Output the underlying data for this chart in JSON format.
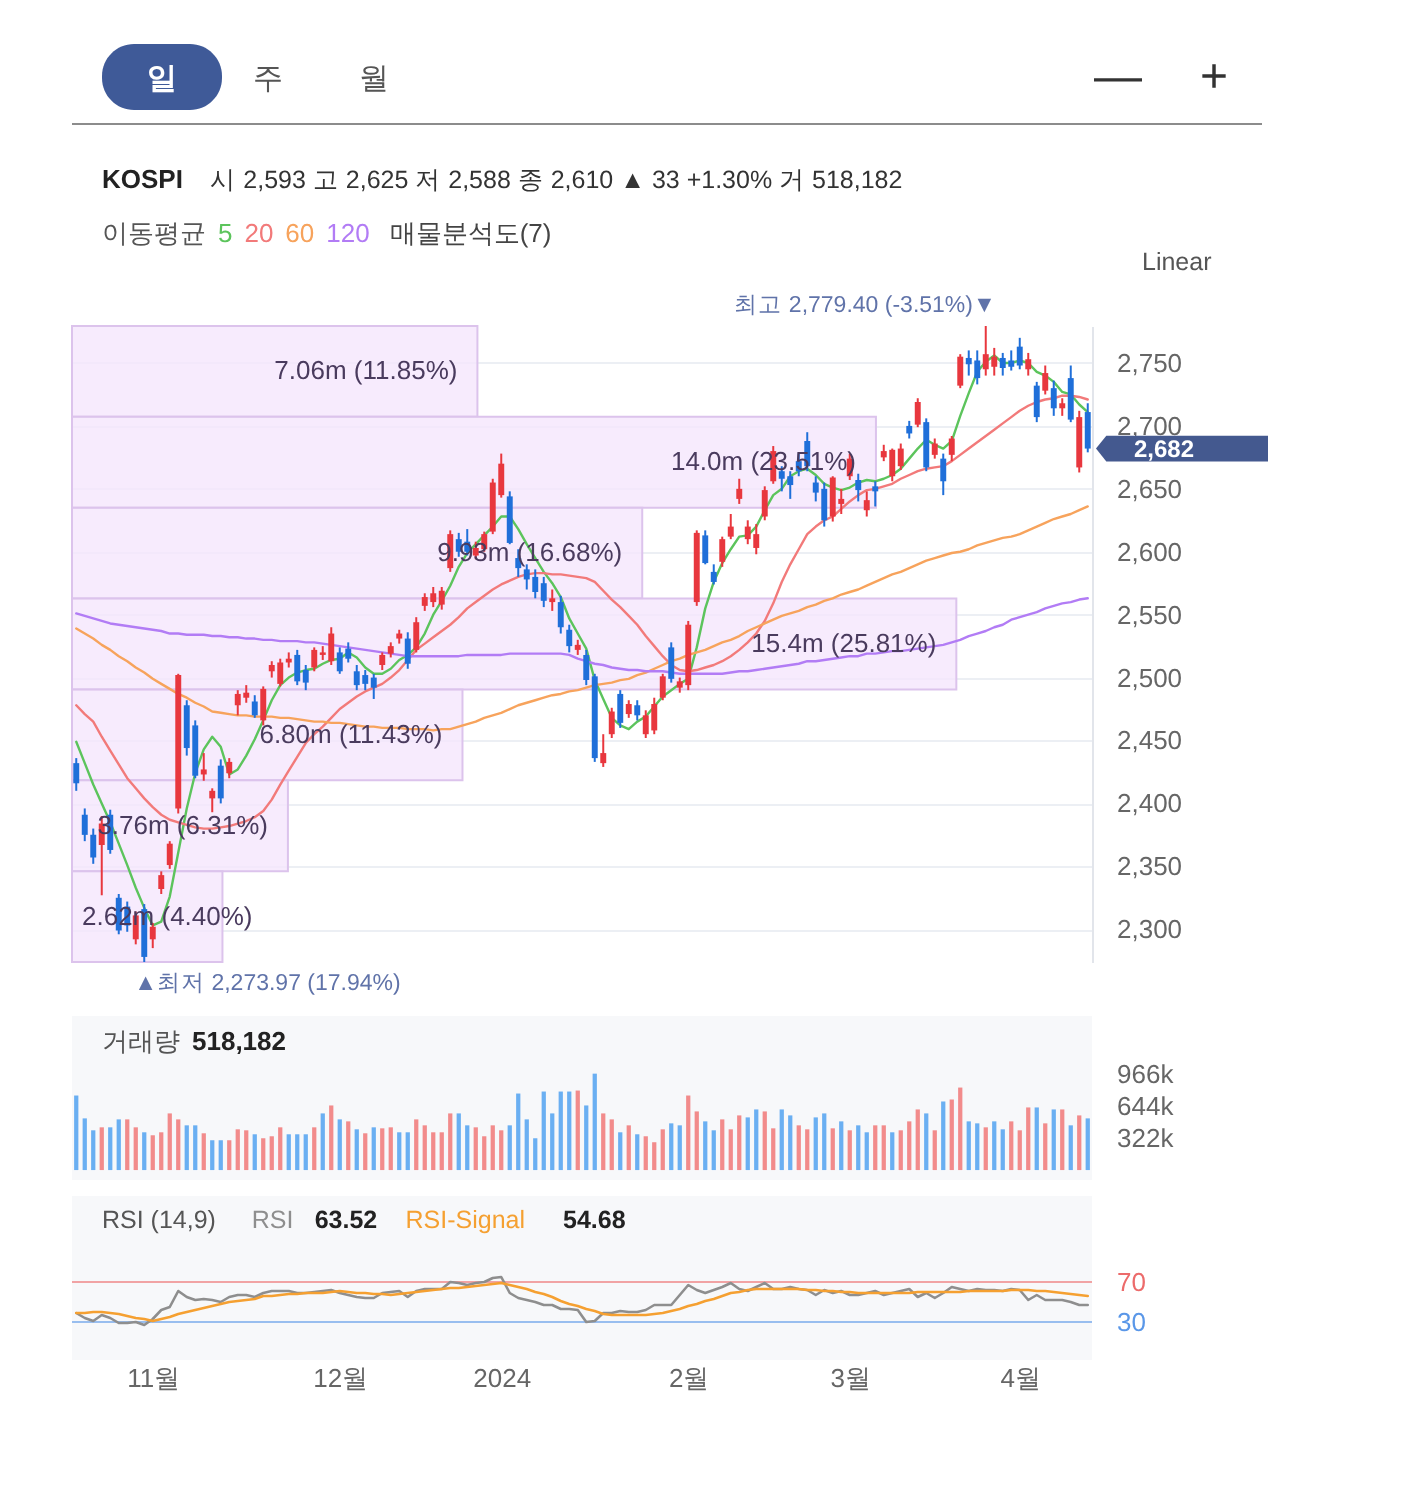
{
  "chart_data": [
    {
      "type": "other",
      "annotations": [
        "일",
        "주",
        "월",
        "—",
        "+"
      ]
    },
    {
      "type": "candlestick",
      "title": "KOSPI",
      "subtitle": "시 2,593 고 2,625 저 2,588 종 2,610 ▲ 33 +1.30% 거 518,182",
      "legend_title": "이동평균",
      "legend": "top left",
      "grid": "y",
      "categories": [
        null,
        null,
        null,
        null,
        null,
        null,
        null,
        null,
        null,
        null,
        null,
        null,
        null,
        null,
        null,
        null,
        null,
        null,
        null,
        null,
        null,
        null,
        null,
        null,
        null,
        null,
        null,
        null,
        null,
        null,
        null,
        null,
        null,
        null,
        null,
        null,
        null,
        null,
        null,
        null,
        null,
        null,
        null,
        null,
        null,
        null,
        null,
        null,
        null,
        null,
        null,
        null,
        null,
        null,
        null,
        null,
        null,
        null,
        null,
        null,
        null,
        null,
        null,
        null,
        null,
        null,
        null,
        null,
        null,
        null,
        null,
        null,
        null,
        null,
        null,
        null,
        null,
        null,
        null,
        null,
        null,
        null,
        null,
        null,
        null,
        null,
        null,
        null,
        null,
        null,
        null,
        null,
        null,
        null,
        null,
        null,
        null,
        null,
        null,
        null,
        null,
        null,
        null,
        null,
        null,
        null,
        null,
        null,
        null,
        null,
        null,
        null,
        null,
        null,
        null,
        null,
        null,
        null,
        null,
        null
      ],
      "ohlc": [
        [
          2432,
          2436,
          2410,
          2416
        ],
        [
          2391,
          2396,
          2370,
          2375
        ],
        [
          2375,
          2380,
          2352,
          2357
        ],
        [
          2367,
          2390,
          2327,
          2384
        ],
        [
          2391,
          2395,
          2360,
          2363
        ],
        [
          2325,
          2328,
          2296,
          2299
        ],
        [
          2318,
          2322,
          2298,
          2303
        ],
        [
          2292,
          2314,
          2288,
          2311
        ],
        [
          2316,
          2320,
          2273.97,
          2278
        ],
        [
          2292,
          2305,
          2285,
          2302
        ],
        [
          2332,
          2346,
          2328,
          2343
        ],
        [
          2351,
          2370,
          2348,
          2368
        ],
        [
          2396,
          2503,
          2392,
          2502
        ],
        [
          2478,
          2482,
          2438,
          2444
        ],
        [
          2462,
          2466,
          2420,
          2422
        ],
        [
          2423,
          2440,
          2418,
          2427
        ],
        [
          2404,
          2412,
          2393,
          2410
        ],
        [
          2430,
          2435,
          2400,
          2404
        ],
        [
          2424,
          2436,
          2420,
          2433
        ],
        [
          2478,
          2490,
          2470,
          2487
        ],
        [
          2484,
          2494,
          2480,
          2488
        ],
        [
          2481,
          2486,
          2468,
          2470
        ],
        [
          2466,
          2493,
          2462,
          2491
        ],
        [
          2505,
          2513,
          2500,
          2510
        ],
        [
          2495,
          2515,
          2493,
          2512
        ],
        [
          2512,
          2520,
          2508,
          2515
        ],
        [
          2518,
          2522,
          2494,
          2497
        ],
        [
          2506,
          2510,
          2490,
          2496
        ],
        [
          2508,
          2524,
          2505,
          2522
        ],
        [
          2518,
          2525,
          2514,
          2520
        ],
        [
          2513,
          2540,
          2510,
          2535
        ],
        [
          2520,
          2524,
          2503,
          2505
        ],
        [
          2523,
          2528,
          2512,
          2515
        ],
        [
          2505,
          2510,
          2490,
          2494
        ],
        [
          2502,
          2506,
          2490,
          2495
        ],
        [
          2500,
          2503,
          2483,
          2492
        ],
        [
          2510,
          2520,
          2506,
          2518
        ],
        [
          2519,
          2528,
          2516,
          2525
        ],
        [
          2531,
          2538,
          2527,
          2535
        ],
        [
          2531,
          2536,
          2507,
          2511
        ],
        [
          2522,
          2548,
          2520,
          2544
        ],
        [
          2557,
          2567,
          2553,
          2564
        ],
        [
          2560,
          2572,
          2556,
          2567
        ],
        [
          2558,
          2572,
          2554,
          2569
        ],
        [
          2587,
          2617,
          2584,
          2614
        ],
        [
          2610,
          2615,
          2596,
          2600
        ],
        [
          2608,
          2618,
          2597,
          2600
        ],
        [
          2597,
          2608,
          2594,
          2603
        ],
        [
          2602,
          2616,
          2600,
          2614
        ],
        [
          2616,
          2658,
          2614,
          2655
        ],
        [
          2645,
          2678,
          2643,
          2670
        ],
        [
          2644,
          2648,
          2606,
          2607
        ],
        [
          2595,
          2602,
          2580,
          2587
        ],
        [
          2586,
          2590,
          2570,
          2578
        ],
        [
          2580,
          2586,
          2563,
          2568
        ],
        [
          2575,
          2580,
          2556,
          2561
        ],
        [
          2560,
          2570,
          2553,
          2563
        ],
        [
          2560,
          2565,
          2535,
          2540
        ],
        [
          2538,
          2542,
          2520,
          2525
        ],
        [
          2522,
          2530,
          2518,
          2526
        ],
        [
          2518,
          2522,
          2494,
          2498
        ],
        [
          2501,
          2503,
          2433,
          2436
        ],
        [
          2432,
          2455,
          2429,
          2440
        ],
        [
          2455,
          2476,
          2452,
          2473
        ],
        [
          2487,
          2490,
          2460,
          2464
        ],
        [
          2471,
          2482,
          2468,
          2479
        ],
        [
          2478,
          2482,
          2466,
          2470
        ],
        [
          2455,
          2474,
          2452,
          2470
        ],
        [
          2458,
          2484,
          2455,
          2479
        ],
        [
          2484,
          2503,
          2482,
          2501
        ],
        [
          2524,
          2528,
          2496,
          2499
        ],
        [
          2492,
          2500,
          2488,
          2497
        ],
        [
          2494,
          2545,
          2490,
          2542
        ],
        [
          2560,
          2617,
          2557,
          2615
        ],
        [
          2613,
          2617,
          2590,
          2591
        ],
        [
          2584,
          2590,
          2574,
          2576
        ],
        [
          2592,
          2612,
          2588,
          2610
        ],
        [
          2612,
          2630,
          2610,
          2620
        ],
        [
          2642,
          2658,
          2638,
          2650
        ],
        [
          2610,
          2625,
          2606,
          2620
        ],
        [
          2603,
          2622,
          2598,
          2614
        ],
        [
          2628,
          2652,
          2625,
          2649
        ],
        [
          2656,
          2684,
          2654,
          2680
        ],
        [
          2664,
          2668,
          2648,
          2658
        ],
        [
          2660,
          2664,
          2642,
          2653
        ],
        [
          2672,
          2678,
          2660,
          2664
        ],
        [
          2688,
          2695,
          2664,
          2668
        ],
        [
          2655,
          2660,
          2640,
          2647
        ],
        [
          2650,
          2655,
          2620,
          2625
        ],
        [
          2628,
          2660,
          2624,
          2659
        ],
        [
          2638,
          2650,
          2630,
          2642
        ],
        [
          2660,
          2678,
          2657,
          2674
        ],
        [
          2657,
          2662,
          2640,
          2649
        ],
        [
          2633,
          2648,
          2628,
          2641
        ],
        [
          2652,
          2656,
          2636,
          2648
        ],
        [
          2675,
          2685,
          2672,
          2680
        ],
        [
          2660,
          2682,
          2656,
          2681
        ],
        [
          2668,
          2686,
          2665,
          2682
        ],
        [
          2700,
          2704,
          2690,
          2694
        ],
        [
          2701,
          2722,
          2699,
          2719
        ],
        [
          2703,
          2706,
          2664,
          2667
        ],
        [
          2677,
          2690,
          2674,
          2686
        ],
        [
          2674,
          2678,
          2645,
          2656
        ],
        [
          2677,
          2692,
          2672,
          2690
        ],
        [
          2732,
          2757,
          2730,
          2755
        ],
        [
          2754,
          2760,
          2740,
          2749
        ],
        [
          2752,
          2760,
          2733,
          2738
        ],
        [
          2745,
          2779.4,
          2740,
          2757
        ],
        [
          2747,
          2762,
          2740,
          2755
        ],
        [
          2754,
          2758,
          2740,
          2746
        ],
        [
          2752,
          2760,
          2744,
          2747
        ],
        [
          2763,
          2770,
          2745,
          2748
        ],
        [
          2745,
          2758,
          2740,
          2753
        ],
        [
          2732,
          2735,
          2703,
          2707
        ],
        [
          2728,
          2748,
          2725,
          2742
        ],
        [
          2730,
          2736,
          2708,
          2714
        ],
        [
          2714,
          2722,
          2708,
          2718
        ],
        [
          2738,
          2748,
          2703,
          2705
        ],
        [
          2667,
          2712,
          2663,
          2707
        ],
        [
          2711,
          2718,
          2679,
          2682
        ]
      ],
      "colors": [
        "#1f6fd9",
        "#1f6fd9",
        "#1f6fd9",
        "#e8373e",
        "#1f6fd9",
        "#1f6fd9",
        "#1f6fd9",
        "#e8373e",
        "#1f6fd9",
        "#e8373e",
        "#e8373e",
        "#e8373e",
        "#e8373e",
        "#1f6fd9",
        "#1f6fd9",
        "#e8373e",
        "#e8373e",
        "#1f6fd9",
        "#e8373e",
        "#e8373e",
        "#e8373e",
        "#1f6fd9",
        "#e8373e",
        "#e8373e",
        "#e8373e",
        "#e8373e",
        "#1f6fd9",
        "#1f6fd9",
        "#e8373e",
        "#e8373e",
        "#e8373e",
        "#1f6fd9",
        "#1f6fd9",
        "#1f6fd9",
        "#1f6fd9",
        "#1f6fd9",
        "#e8373e",
        "#e8373e",
        "#e8373e",
        "#1f6fd9",
        "#e8373e",
        "#e8373e",
        "#e8373e",
        "#e8373e",
        "#e8373e",
        "#1f6fd9",
        "#1f6fd9",
        "#e8373e",
        "#e8373e",
        "#e8373e",
        "#e8373e",
        "#1f6fd9",
        "#1f6fd9",
        "#1f6fd9",
        "#1f6fd9",
        "#1f6fd9",
        "#e8373e",
        "#1f6fd9",
        "#1f6fd9",
        "#e8373e",
        "#1f6fd9",
        "#1f6fd9",
        "#e8373e",
        "#e8373e",
        "#1f6fd9",
        "#e8373e",
        "#1f6fd9",
        "#e8373e",
        "#e8373e",
        "#e8373e",
        "#1f6fd9",
        "#e8373e",
        "#e8373e",
        "#e8373e",
        "#1f6fd9",
        "#1f6fd9",
        "#e8373e",
        "#e8373e",
        "#e8373e",
        "#e8373e",
        "#e8373e",
        "#e8373e",
        "#e8373e",
        "#1f6fd9",
        "#1f6fd9",
        "#1f6fd9",
        "#1f6fd9",
        "#1f6fd9",
        "#1f6fd9",
        "#e8373e",
        "#e8373e",
        "#e8373e",
        "#1f6fd9",
        "#e8373e",
        "#1f6fd9",
        "#e8373e",
        "#e8373e",
        "#e8373e",
        "#1f6fd9",
        "#e8373e",
        "#1f6fd9",
        "#e8373e",
        "#1f6fd9",
        "#e8373e",
        "#e8373e",
        "#1f6fd9",
        "#1f6fd9",
        "#e8373e",
        "#e8373e",
        "#1f6fd9",
        "#1f6fd9",
        "#1f6fd9",
        "#e8373e",
        "#1f6fd9",
        "#e8373e",
        "#1f6fd9",
        "#e8373e",
        "#1f6fd9",
        "#e8373e",
        "#1f6fd9"
      ],
      "series": [
        {
          "name": "5",
          "type": "line",
          "color": "#5cc45c",
          "values": [
            2449,
            2432,
            2415,
            2400,
            2385,
            2368,
            2351,
            2333,
            2317,
            2303,
            2306,
            2326,
            2361,
            2396,
            2424,
            2443,
            2453,
            2445,
            2423,
            2427,
            2438,
            2451,
            2466,
            2482,
            2494,
            2500,
            2504,
            2506,
            2507,
            2511,
            2514,
            2515,
            2520,
            2516,
            2508,
            2503,
            2503,
            2507,
            2514,
            2518,
            2524,
            2535,
            2550,
            2561,
            2573,
            2588,
            2599,
            2606,
            2613,
            2620,
            2628,
            2628,
            2618,
            2606,
            2595,
            2584,
            2575,
            2564,
            2547,
            2535,
            2523,
            2498,
            2483,
            2468,
            2462,
            2459,
            2465,
            2469,
            2477,
            2485,
            2490,
            2495,
            2499,
            2524,
            2555,
            2576,
            2591,
            2602,
            2612,
            2613,
            2620,
            2633,
            2645,
            2650,
            2660,
            2664,
            2666,
            2661,
            2654,
            2651,
            2649,
            2651,
            2655,
            2657,
            2656,
            2658,
            2661,
            2666,
            2674,
            2682,
            2689,
            2685,
            2682,
            2688,
            2708,
            2726,
            2743,
            2751,
            2756,
            2750,
            2750,
            2752,
            2750,
            2743,
            2740,
            2735,
            2727,
            2725,
            2717,
            2711
          ]
        },
        {
          "name": "20",
          "type": "line",
          "color": "#f27a7a",
          "values": [
            2478,
            2471,
            2465,
            2453,
            2442,
            2431,
            2420,
            2412,
            2404,
            2397,
            2391,
            2387,
            2385,
            2383,
            2381,
            2380,
            2380,
            2381,
            2382,
            2384,
            2386,
            2389,
            2394,
            2403,
            2415,
            2426,
            2437,
            2448,
            2455,
            2461,
            2468,
            2475,
            2480,
            2485,
            2489,
            2492,
            2495,
            2500,
            2506,
            2514,
            2522,
            2527,
            2532,
            2537,
            2542,
            2548,
            2555,
            2560,
            2565,
            2570,
            2574,
            2577,
            2580,
            2582,
            2583,
            2583,
            2582,
            2582,
            2581,
            2580,
            2579,
            2576,
            2569,
            2562,
            2556,
            2549,
            2542,
            2533,
            2525,
            2517,
            2510,
            2506,
            2505,
            2506,
            2508,
            2510,
            2513,
            2517,
            2522,
            2528,
            2535,
            2545,
            2559,
            2576,
            2590,
            2602,
            2614,
            2620,
            2625,
            2628,
            2634,
            2640,
            2645,
            2649,
            2650,
            2652,
            2654,
            2658,
            2661,
            2664,
            2666,
            2667,
            2668,
            2672,
            2677,
            2682,
            2687,
            2692,
            2697,
            2702,
            2707,
            2712,
            2716,
            2719,
            2721,
            2722,
            2724,
            2724,
            2723,
            2721
          ]
        },
        {
          "name": "60",
          "type": "line",
          "color": "#f7a35c",
          "values": [
            2539,
            2535,
            2531,
            2526,
            2522,
            2517,
            2513,
            2508,
            2504,
            2499,
            2495,
            2491,
            2487,
            2484,
            2480,
            2477,
            2473,
            2472,
            2471,
            2470,
            2470,
            2469,
            2469,
            2469,
            2468,
            2468,
            2467,
            2466,
            2465,
            2465,
            2464,
            2464,
            2463,
            2462,
            2461,
            2461,
            2460,
            2460,
            2460,
            2459,
            2459,
            2459,
            2458,
            2459,
            2459,
            2461,
            2463,
            2465,
            2468,
            2470,
            2472,
            2475,
            2478,
            2480,
            2482,
            2484,
            2486,
            2487,
            2489,
            2490,
            2492,
            2494,
            2495,
            2496,
            2498,
            2499,
            2502,
            2504,
            2507,
            2510,
            2513,
            2515,
            2518,
            2520,
            2522,
            2525,
            2528,
            2530,
            2533,
            2537,
            2540,
            2543,
            2546,
            2549,
            2551,
            2553,
            2556,
            2558,
            2561,
            2563,
            2566,
            2568,
            2570,
            2573,
            2576,
            2579,
            2582,
            2584,
            2587,
            2590,
            2593,
            2595,
            2597,
            2599,
            2600,
            2602,
            2605,
            2607,
            2609,
            2611,
            2612,
            2614,
            2617,
            2620,
            2623,
            2626,
            2628,
            2630,
            2633,
            2636
          ]
        },
        {
          "name": "120",
          "type": "line",
          "color": "#b27cf5",
          "values": [
            2551,
            2549,
            2547,
            2545,
            2543,
            2542,
            2541,
            2540,
            2539,
            2538,
            2537,
            2535,
            2535,
            2534,
            2534,
            2534,
            2533,
            2533,
            2532,
            2532,
            2531,
            2531,
            2530,
            2530,
            2529,
            2529,
            2529,
            2528,
            2528,
            2527,
            2526,
            2525,
            2524,
            2523,
            2522,
            2521,
            2520,
            2519,
            2518,
            2517,
            2517,
            2517,
            2517,
            2517,
            2517,
            2517,
            2518,
            2518,
            2518,
            2518,
            2518,
            2519,
            2519,
            2519,
            2519,
            2519,
            2519,
            2519,
            2518,
            2515,
            2513,
            2511,
            2510,
            2508,
            2507,
            2506,
            2506,
            2505,
            2505,
            2505,
            2504,
            2503,
            2503,
            2503,
            2503,
            2503,
            2503,
            2504,
            2505,
            2505,
            2506,
            2507,
            2508,
            2509,
            2510,
            2511,
            2513,
            2513,
            2514,
            2515,
            2516,
            2517,
            2517,
            2519,
            2519,
            2520,
            2521,
            2521,
            2522,
            2523,
            2524,
            2525,
            2526,
            2528,
            2530,
            2533,
            2535,
            2537,
            2540,
            2542,
            2546,
            2548,
            2550,
            2552,
            2555,
            2557,
            2559,
            2560,
            2562,
            2563
          ]
        }
      ],
      "ylim": [
        2273.97,
        2779.4
      ],
      "yticks": [
        {
          "value": 2300,
          "label": "2,300"
        },
        {
          "value": 2350,
          "label": "2,350"
        },
        {
          "value": 2400,
          "label": "2,400"
        },
        {
          "value": 2450,
          "label": "2,450"
        },
        {
          "value": 2500,
          "label": "2,500"
        },
        {
          "value": 2550,
          "label": "2,550"
        },
        {
          "value": 2600,
          "label": "2,600"
        },
        {
          "value": 2650,
          "label": "2,650"
        },
        {
          "value": 2700,
          "label": "2,700"
        },
        {
          "value": 2750,
          "label": "2,750"
        }
      ],
      "annotations": [
        "최고 2,779.40 (-3.51%)▼",
        "▲최저 2,273.97 (17.94%)",
        "2,682",
        "Linear"
      ]
    },
    {
      "type": "bar",
      "orientation": "horizontal",
      "title": "매물분석도(7)",
      "categories": [
        null,
        null,
        null,
        null,
        null,
        null,
        null
      ],
      "values": [
        7060000,
        14000000,
        9930000,
        15400000,
        6800000,
        3760000,
        2620000
      ],
      "value_labels": [
        "7.06m (11.85%)",
        "14.0m (23.51%)",
        "9.93m (16.68%)",
        "15.4m (25.81%)",
        "6.80m (11.43%)",
        "3.76m (6.31%)",
        "2.62m (4.40%)"
      ],
      "colors": [
        "#f5e6fc",
        "#f5e6fc",
        "#f5e6fc",
        "#f5e6fc",
        "#f5e6fc",
        "#f5e6fc",
        "#f5e6fc"
      ]
    },
    {
      "type": "bar",
      "title": "거래량",
      "annotations": [
        "518,182"
      ],
      "categories": [
        null,
        null,
        null,
        null,
        null,
        null,
        null,
        null,
        null,
        null,
        null,
        null,
        null,
        null,
        null,
        null,
        null,
        null,
        null,
        null,
        null,
        null,
        null,
        null,
        null,
        null,
        null,
        null,
        null,
        null,
        null,
        null,
        null,
        null,
        null,
        null,
        null,
        null,
        null,
        null,
        null,
        null,
        null,
        null,
        null,
        null,
        null,
        null,
        null,
        null,
        null,
        null,
        null,
        null,
        null,
        null,
        null,
        null,
        null,
        null,
        null,
        null,
        null,
        null,
        null,
        null,
        null,
        null,
        null,
        null,
        null,
        null,
        null,
        null,
        null,
        null,
        null,
        null,
        null,
        null,
        null,
        null,
        null,
        null,
        null,
        null,
        null,
        null,
        null,
        null,
        null,
        null,
        null,
        null,
        null,
        null,
        null,
        null,
        null,
        null,
        null,
        null,
        null,
        null,
        null,
        null,
        null,
        null,
        null,
        null,
        null,
        null,
        null,
        null,
        null,
        null,
        null,
        null,
        null,
        null
      ],
      "values": [
        750000,
        520000,
        400000,
        430000,
        430000,
        510000,
        510000,
        430000,
        380000,
        350000,
        380000,
        570000,
        510000,
        450000,
        450000,
        370000,
        300000,
        300000,
        300000,
        410000,
        400000,
        360000,
        320000,
        340000,
        430000,
        360000,
        360000,
        360000,
        430000,
        570000,
        650000,
        510000,
        490000,
        410000,
        370000,
        430000,
        420000,
        430000,
        380000,
        380000,
        510000,
        450000,
        380000,
        380000,
        570000,
        570000,
        450000,
        430000,
        340000,
        450000,
        400000,
        450000,
        770000,
        510000,
        320000,
        790000,
        570000,
        790000,
        790000,
        800000,
        650000,
        970000,
        570000,
        510000,
        380000,
        450000,
        360000,
        340000,
        280000,
        410000,
        470000,
        450000,
        750000,
        590000,
        490000,
        400000,
        510000,
        410000,
        550000,
        530000,
        610000,
        590000,
        420000,
        610000,
        550000,
        450000,
        410000,
        530000,
        570000,
        420000,
        490000,
        400000,
        450000,
        380000,
        450000,
        450000,
        380000,
        400000,
        490000,
        610000,
        570000,
        400000,
        690000,
        710000,
        830000,
        490000,
        470000,
        430000,
        490000,
        410000,
        490000,
        400000,
        630000,
        630000,
        470000,
        610000,
        610000,
        450000,
        550000,
        520000
      ],
      "colors": [
        "#6aaff2",
        "#6aaff2",
        "#6aaff2",
        "#f28b8b",
        "#6aaff2",
        "#6aaff2",
        "#f28b8b",
        "#f28b8b",
        "#6aaff2",
        "#f28b8b",
        "#f28b8b",
        "#f28b8b",
        "#f28b8b",
        "#6aaff2",
        "#6aaff2",
        "#f28b8b",
        "#6aaff2",
        "#6aaff2",
        "#f28b8b",
        "#f28b8b",
        "#f28b8b",
        "#6aaff2",
        "#f28b8b",
        "#f28b8b",
        "#f28b8b",
        "#6aaff2",
        "#6aaff2",
        "#6aaff2",
        "#f28b8b",
        "#6aaff2",
        "#f28b8b",
        "#6aaff2",
        "#f28b8b",
        "#6aaff2",
        "#f28b8b",
        "#6aaff2",
        "#f28b8b",
        "#f28b8b",
        "#6aaff2",
        "#6aaff2",
        "#f28b8b",
        "#f28b8b",
        "#f28b8b",
        "#f28b8b",
        "#f28b8b",
        "#6aaff2",
        "#6aaff2",
        "#f28b8b",
        "#f28b8b",
        "#f28b8b",
        "#f28b8b",
        "#6aaff2",
        "#6aaff2",
        "#6aaff2",
        "#6aaff2",
        "#6aaff2",
        "#6aaff2",
        "#6aaff2",
        "#6aaff2",
        "#f28b8b",
        "#6aaff2",
        "#6aaff2",
        "#f28b8b",
        "#f28b8b",
        "#6aaff2",
        "#f28b8b",
        "#6aaff2",
        "#f28b8b",
        "#f28b8b",
        "#f28b8b",
        "#6aaff2",
        "#6aaff2",
        "#f28b8b",
        "#f28b8b",
        "#6aaff2",
        "#6aaff2",
        "#f28b8b",
        "#f28b8b",
        "#f28b8b",
        "#6aaff2",
        "#6aaff2",
        "#f28b8b",
        "#f28b8b",
        "#6aaff2",
        "#6aaff2",
        "#f28b8b",
        "#f28b8b",
        "#6aaff2",
        "#6aaff2",
        "#f28b8b",
        "#6aaff2",
        "#f28b8b",
        "#6aaff2",
        "#6aaff2",
        "#f28b8b",
        "#f28b8b",
        "#6aaff2",
        "#f28b8b",
        "#f28b8b",
        "#f28b8b",
        "#6aaff2",
        "#f28b8b",
        "#6aaff2",
        "#f28b8b",
        "#f28b8b",
        "#6aaff2",
        "#6aaff2",
        "#f28b8b",
        "#6aaff2",
        "#6aaff2",
        "#f28b8b",
        "#f28b8b",
        "#f28b8b",
        "#6aaff2",
        "#f28b8b",
        "#6aaff2",
        "#f28b8b",
        "#6aaff2",
        "#f28b8b",
        "#6aaff2"
      ],
      "ylim": [
        -100000,
        1550000
      ],
      "yticks": [
        {
          "value": 322000,
          "label": "322k"
        },
        {
          "value": 644000,
          "label": "644k"
        },
        {
          "value": 966000,
          "label": "966k"
        }
      ]
    },
    {
      "type": "line",
      "title": "RSI (14,9)",
      "legend": "top left",
      "annotations": [
        "63.52",
        "54.68"
      ],
      "categories": [
        null,
        null,
        null,
        null,
        null,
        null,
        null,
        null,
        null,
        "11월",
        null,
        null,
        null,
        null,
        null,
        null,
        null,
        null,
        null,
        null,
        null,
        null,
        null,
        null,
        null,
        null,
        null,
        null,
        null,
        null,
        null,
        "12월",
        null,
        null,
        null,
        null,
        null,
        null,
        null,
        null,
        null,
        null,
        null,
        null,
        null,
        null,
        null,
        null,
        null,
        null,
        "2024",
        null,
        null,
        null,
        null,
        null,
        null,
        null,
        null,
        null,
        null,
        null,
        null,
        null,
        null,
        null,
        null,
        null,
        null,
        null,
        null,
        null,
        "2월",
        null,
        null,
        null,
        null,
        null,
        null,
        null,
        null,
        null,
        null,
        null,
        null,
        null,
        null,
        null,
        null,
        null,
        null,
        "3월",
        null,
        null,
        null,
        null,
        null,
        null,
        null,
        null,
        null,
        null,
        null,
        null,
        null,
        null,
        null,
        null,
        null,
        null,
        null,
        "4월",
        null,
        null,
        null,
        null,
        null,
        null,
        null,
        null
      ],
      "series": [
        {
          "name": "RSI",
          "color": "#8e8e8e",
          "values": [
            39,
            34,
            31,
            37,
            34,
            29,
            29,
            30,
            27,
            33,
            42,
            45,
            61,
            55,
            52,
            53,
            52,
            50,
            55,
            57,
            57,
            55,
            59,
            61,
            61,
            61,
            59,
            59,
            60,
            61,
            62,
            59,
            57,
            55,
            54,
            54,
            59,
            60,
            61,
            55,
            61,
            63,
            63,
            63,
            70,
            69,
            67,
            69,
            70,
            74,
            75,
            59,
            54,
            52,
            50,
            47,
            47,
            43,
            43,
            42,
            30,
            31,
            39,
            39,
            41,
            40,
            40,
            42,
            47,
            47,
            47,
            57,
            67,
            62,
            59,
            62,
            65,
            69,
            63,
            61,
            65,
            69,
            63,
            63,
            65,
            63,
            62,
            57,
            62,
            59,
            61,
            57,
            57,
            59,
            61,
            57,
            59,
            61,
            63,
            55,
            59,
            54,
            59,
            65,
            63,
            61,
            63,
            62,
            62,
            61,
            63,
            62,
            52,
            57,
            52,
            52,
            52,
            50,
            47,
            47
          ]
        },
        {
          "name": "RSI-Signal",
          "color": "#f5a031",
          "values": [
            39,
            39,
            40,
            40,
            39,
            38,
            36,
            34,
            33,
            31,
            33,
            35,
            38,
            40,
            42,
            44,
            46,
            48,
            50,
            51,
            52,
            53,
            56,
            56,
            57,
            58,
            58,
            59,
            59,
            59,
            60,
            61,
            60,
            59,
            59,
            58,
            58,
            57,
            58,
            59,
            60,
            61,
            62,
            63,
            64,
            64,
            65,
            66,
            67,
            68,
            69,
            67,
            65,
            63,
            60,
            58,
            55,
            51,
            48,
            46,
            43,
            41,
            38,
            37,
            37,
            37,
            37,
            37,
            38,
            39,
            41,
            43,
            46,
            48,
            51,
            53,
            56,
            59,
            60,
            62,
            63,
            63,
            63,
            63,
            63,
            63,
            62,
            62,
            61,
            61,
            60,
            60,
            59,
            59,
            59,
            59,
            59,
            59,
            59,
            60,
            60,
            60,
            60,
            60,
            60,
            61,
            61,
            61,
            61,
            61,
            62,
            62,
            62,
            61,
            61,
            60,
            59,
            58,
            57,
            56
          ]
        }
      ],
      "ylim": [
        -8,
        156
      ],
      "yticks": [
        30,
        70
      ],
      "ref_lines": [
        {
          "axis": "y",
          "value": 70,
          "color": "#ec6b6b"
        },
        {
          "axis": "y",
          "value": 30,
          "color": "#5a97e8"
        }
      ]
    }
  ]
}
